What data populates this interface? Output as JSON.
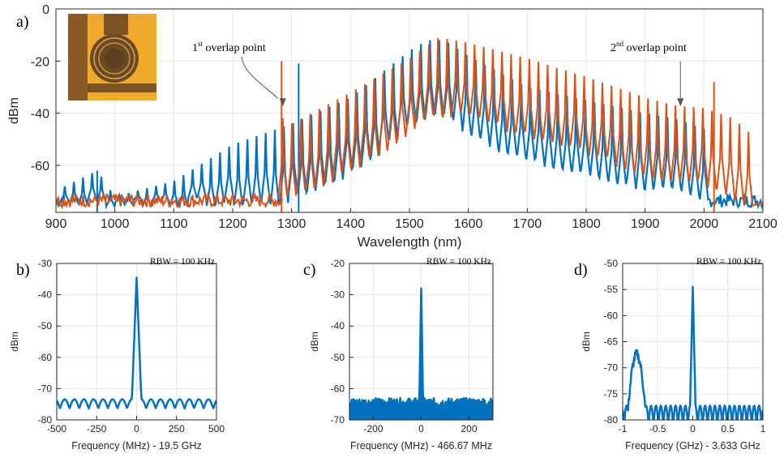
{
  "colors": {
    "blue": "#0072BD",
    "orange": "#D95319",
    "axis": "#262626",
    "grid": "#e6e6e6",
    "inset_bg": "#f0a92a",
    "inset_chip": "#6b4a22"
  },
  "chart_data": [
    {
      "id": "a",
      "panel_label": "a)",
      "type": "line",
      "title": "",
      "xlabel": "Wavelength (nm)",
      "ylabel": "dBm",
      "xlim": [
        900,
        2100
      ],
      "ylim": [
        -78,
        0
      ],
      "xticks": [
        900,
        1000,
        1100,
        1200,
        1300,
        1400,
        1500,
        1600,
        1700,
        1800,
        1900,
        2000,
        2100
      ],
      "yticks": [
        0,
        -20,
        -40,
        -60
      ],
      "grid": true,
      "inset": "microring-photo",
      "annotations": [
        {
          "text_main": "1",
          "text_sup": "st",
          "text_rest": " overlap point",
          "x": 1285,
          "y": -38
        },
        {
          "text_main": "2",
          "text_sup": "nd",
          "text_rest": " overlap point",
          "x": 1960,
          "y": -38
        }
      ],
      "series": [
        {
          "color": "blue",
          "comb": {
            "start": 915,
            "end": 2000,
            "spacing": 15.5,
            "floor": -76
          },
          "envelope_x": [
            915,
            970,
            1000,
            1100,
            1200,
            1300,
            1400,
            1450,
            1500,
            1530,
            1560,
            1600,
            1650,
            1700,
            1800,
            1900,
            1950,
            2000
          ],
          "envelope_y": [
            -68,
            -62,
            -72,
            -66,
            -52,
            -44,
            -34,
            -25,
            -16,
            -12,
            -12,
            -18,
            -24,
            -30,
            -35,
            -40,
            -42,
            -46
          ],
          "spurs": [
            {
              "x": 970,
              "y": -62
            },
            {
              "x": 1312,
              "y": -21
            }
          ]
        },
        {
          "color": "orange",
          "comb": {
            "start": 1285,
            "end": 2090,
            "spacing": 15.5,
            "floor": -76
          },
          "envelope_x": [
            1285,
            1300,
            1400,
            1500,
            1550,
            1600,
            1700,
            1800,
            1900,
            1950,
            2000,
            2050,
            2090
          ],
          "envelope_y": [
            -42,
            -44,
            -32,
            -19,
            -11,
            -13,
            -19,
            -26,
            -34,
            -37,
            -38,
            -42,
            -50
          ],
          "spurs": [
            {
              "x": 1283,
              "y": -20
            },
            {
              "x": 2017,
              "y": -28
            }
          ]
        }
      ]
    },
    {
      "id": "b",
      "panel_label": "b)",
      "type": "line",
      "title": "RBW = 100 KHz",
      "xlabel": "Frequency (MHz) - 19.5 GHz",
      "ylabel": "dBm",
      "xlim": [
        -500,
        500
      ],
      "ylim": [
        -80,
        -30
      ],
      "xticks": [
        -500,
        -250,
        0,
        250,
        500
      ],
      "yticks": [
        -30,
        -40,
        -50,
        -60,
        -70,
        -80
      ],
      "grid": true,
      "series": [
        {
          "color": "blue",
          "peak": {
            "x": 0,
            "y": -34.5,
            "width": 30
          },
          "floor": -74,
          "ripple": {
            "period": 60,
            "amp": 2
          }
        }
      ]
    },
    {
      "id": "c",
      "panel_label": "c)",
      "type": "line",
      "title": "RBW = 100 KHz",
      "xlabel": "Frequency (MHz) - 466.67 MHz",
      "ylabel": "dBm",
      "xlim": [
        -300,
        300
      ],
      "ylim": [
        -70,
        -20
      ],
      "xticks": [
        -200,
        0,
        200
      ],
      "yticks": [
        -20,
        -30,
        -40,
        -50,
        -60,
        -70
      ],
      "grid": true,
      "series": [
        {
          "color": "blue",
          "peak": {
            "x": 0,
            "y": -28,
            "width": 8
          },
          "floor": -64.5,
          "noise": 1.5
        }
      ]
    },
    {
      "id": "d",
      "panel_label": "d)",
      "type": "line",
      "title": "RBW = 100 KHz",
      "xlabel": "Frequency (GHz) - 3.633 GHz",
      "ylabel": "dBm",
      "xlim": [
        -1,
        1
      ],
      "ylim": [
        -80,
        -50
      ],
      "xticks": [
        -1,
        -0.5,
        0,
        0.5,
        1
      ],
      "yticks": [
        -50,
        -55,
        -60,
        -65,
        -70,
        -75,
        -80
      ],
      "grid": true,
      "series": [
        {
          "color": "blue",
          "peak": {
            "x": 0,
            "y": -54.5,
            "width": 0.04
          },
          "floor": -78,
          "ripple": {
            "period": 0.07,
            "amp": 2.5
          },
          "bump": {
            "x": -0.8,
            "y": -67.5,
            "width": 0.12
          }
        }
      ]
    }
  ]
}
